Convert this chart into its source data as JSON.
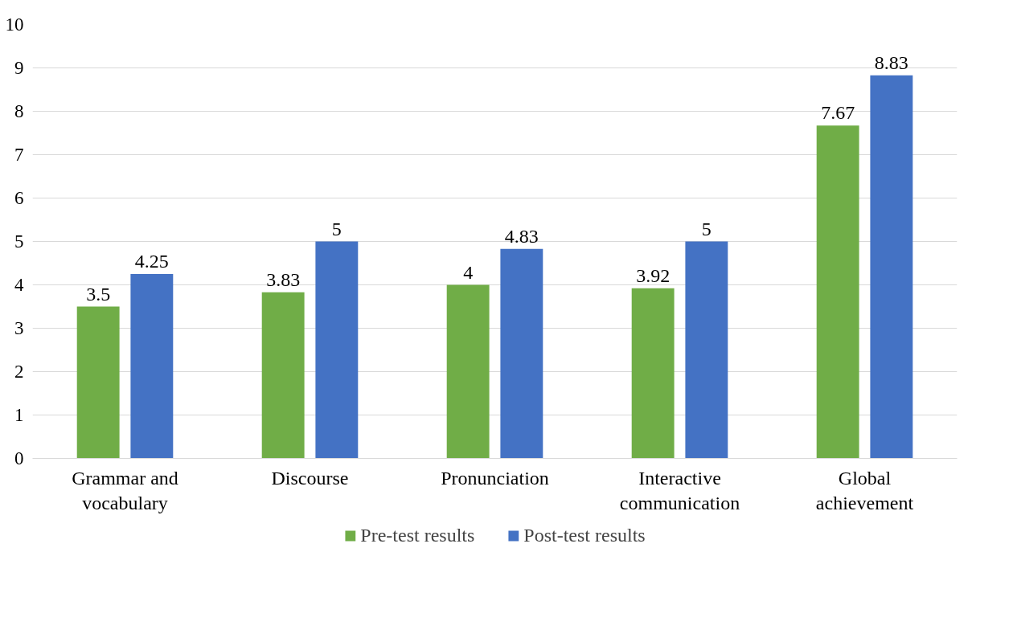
{
  "chart_data": {
    "type": "bar",
    "categories": [
      "Grammar and vocabulary",
      "Discourse",
      "Pronunciation",
      "Interactive communication",
      "Global achievement"
    ],
    "series": [
      {
        "name": "Pre-test results",
        "color": "#70ad47",
        "values": [
          3.5,
          3.83,
          4,
          3.92,
          7.67
        ]
      },
      {
        "name": "Post-test results",
        "color": "#4472c4",
        "values": [
          4.25,
          5,
          4.83,
          5,
          8.83
        ]
      }
    ],
    "ylim": [
      0,
      10
    ],
    "yticks": [
      0,
      1,
      2,
      3,
      4,
      5,
      6,
      7,
      8,
      9,
      10
    ],
    "grid": "y",
    "legend": "bottom",
    "data_labels": true
  }
}
